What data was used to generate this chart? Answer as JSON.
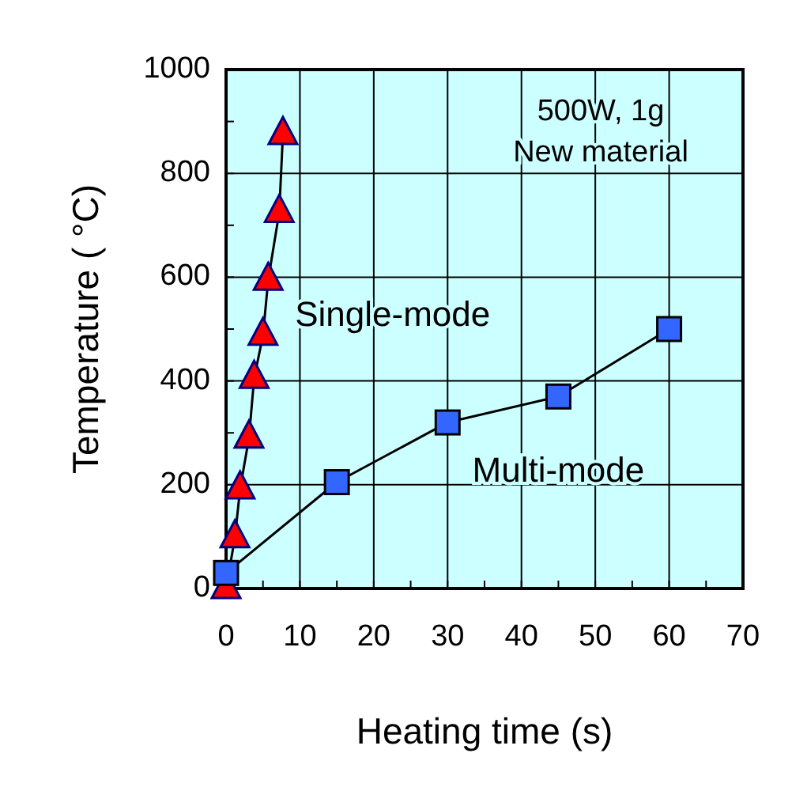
{
  "chart_data": {
    "type": "line",
    "xlabel": "Heating time (s)",
    "ylabel": "Temperature ( °C)",
    "xlim": [
      0,
      70
    ],
    "xticks": [
      0,
      {
        "value": 5,
        "label": null
      },
      10,
      {
        "value": 15,
        "label": null
      },
      20,
      {
        "value": 25,
        "label": null
      },
      30,
      {
        "value": 35,
        "label": null
      },
      40,
      {
        "value": 45,
        "label": null
      },
      50,
      {
        "value": 55,
        "label": null
      },
      60,
      {
        "value": 65,
        "label": null
      },
      70
    ],
    "ylim": [
      0,
      1000
    ],
    "yticks": [
      0,
      {
        "value": 100,
        "label": null
      },
      200,
      {
        "value": 300,
        "label": null
      },
      400,
      {
        "value": 500,
        "label": null
      },
      600,
      {
        "value": 700,
        "label": null
      },
      800,
      {
        "value": 900,
        "label": null
      },
      1000
    ],
    "grid": true,
    "legend": false,
    "annotations": [
      "500W, 1g",
      "New material"
    ],
    "series": [
      {
        "name": "Single-mode",
        "color": "#ff0000",
        "marker": "triangle",
        "x": [
          0,
          1.2,
          1.9,
          3.1,
          3.8,
          5,
          5.7,
          7.2,
          7.7
        ],
        "values": [
          0,
          98,
          192,
          290,
          405,
          488,
          594,
          725,
          875
        ]
      },
      {
        "name": "Multi-mode",
        "color": "#3366ff",
        "marker": "square",
        "x": [
          0,
          15,
          30,
          45,
          60
        ],
        "values": [
          30,
          205,
          320,
          370,
          500
        ]
      }
    ]
  }
}
